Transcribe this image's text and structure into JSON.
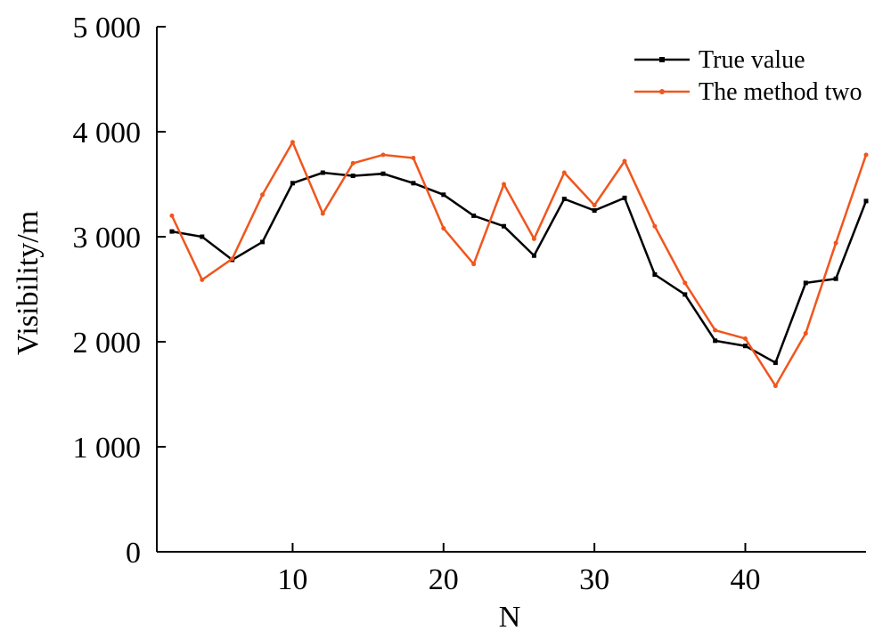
{
  "chart_data": {
    "type": "line",
    "title": "",
    "xlabel": "N",
    "ylabel": "Visibility/m",
    "xlim": [
      1,
      48
    ],
    "ylim": [
      0,
      5000
    ],
    "x_ticks": [
      10,
      20,
      30,
      40
    ],
    "x_tick_labels": [
      "10",
      "20",
      "30",
      "40"
    ],
    "y_ticks": [
      0,
      1000,
      2000,
      3000,
      4000,
      5000
    ],
    "y_tick_labels": [
      "0",
      "1 000",
      "2 000",
      "3 000",
      "4 000",
      "5 000"
    ],
    "grid": false,
    "legend_position": "top-right",
    "x": [
      2,
      4,
      6,
      8,
      10,
      12,
      14,
      16,
      18,
      20,
      22,
      24,
      26,
      28,
      30,
      32,
      34,
      36,
      38,
      40,
      42,
      44,
      46,
      48
    ],
    "series": [
      {
        "name": "True value",
        "color": "#000000",
        "marker": "square",
        "values": [
          3050,
          3000,
          2780,
          2950,
          3510,
          3610,
          3580,
          3600,
          3510,
          3400,
          3200,
          3100,
          2820,
          3360,
          3250,
          3370,
          2640,
          2450,
          2010,
          1960,
          1800,
          2560,
          2600,
          3340
        ]
      },
      {
        "name": "The method two",
        "color": "#f0561d",
        "marker": "circle",
        "values": [
          3200,
          2590,
          2790,
          3400,
          3900,
          3220,
          3700,
          3780,
          3750,
          3080,
          2740,
          3500,
          2980,
          3610,
          3300,
          3720,
          3100,
          2560,
          2110,
          2030,
          1580,
          2080,
          2940,
          3780
        ]
      }
    ]
  }
}
